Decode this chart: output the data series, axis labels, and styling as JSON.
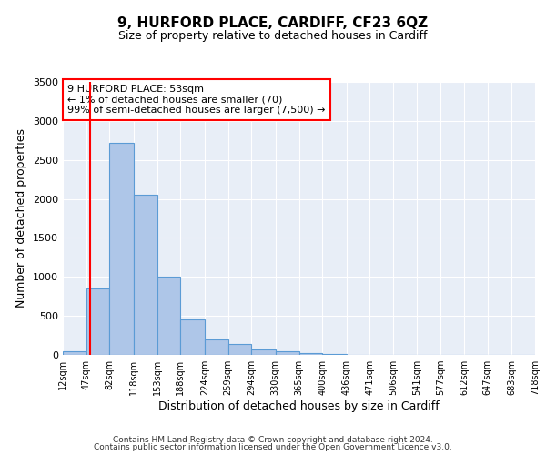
{
  "title": "9, HURFORD PLACE, CARDIFF, CF23 6QZ",
  "subtitle": "Size of property relative to detached houses in Cardiff",
  "xlabel": "Distribution of detached houses by size in Cardiff",
  "ylabel": "Number of detached properties",
  "bar_values": [
    50,
    850,
    2720,
    2050,
    1000,
    450,
    200,
    140,
    75,
    50,
    25,
    15,
    5,
    2,
    1,
    0,
    0,
    0,
    0,
    0
  ],
  "bin_edges": [
    12,
    47,
    82,
    118,
    153,
    188,
    224,
    259,
    294,
    330,
    365,
    400,
    436,
    471,
    506,
    541,
    577,
    612,
    647,
    683,
    718
  ],
  "tick_labels": [
    "12sqm",
    "47sqm",
    "82sqm",
    "118sqm",
    "153sqm",
    "188sqm",
    "224sqm",
    "259sqm",
    "294sqm",
    "330sqm",
    "365sqm",
    "400sqm",
    "436sqm",
    "471sqm",
    "506sqm",
    "541sqm",
    "577sqm",
    "612sqm",
    "647sqm",
    "683sqm",
    "718sqm"
  ],
  "bar_color": "#aec6e8",
  "bar_edge_color": "#5b9bd5",
  "red_line_x": 53,
  "ylim": [
    0,
    3500
  ],
  "yticks": [
    0,
    500,
    1000,
    1500,
    2000,
    2500,
    3000,
    3500
  ],
  "annotation_lines": [
    "9 HURFORD PLACE: 53sqm",
    "← 1% of detached houses are smaller (70)",
    "99% of semi-detached houses are larger (7,500) →"
  ],
  "bg_color": "#e8eef7",
  "footer_line1": "Contains HM Land Registry data © Crown copyright and database right 2024.",
  "footer_line2": "Contains public sector information licensed under the Open Government Licence v3.0."
}
